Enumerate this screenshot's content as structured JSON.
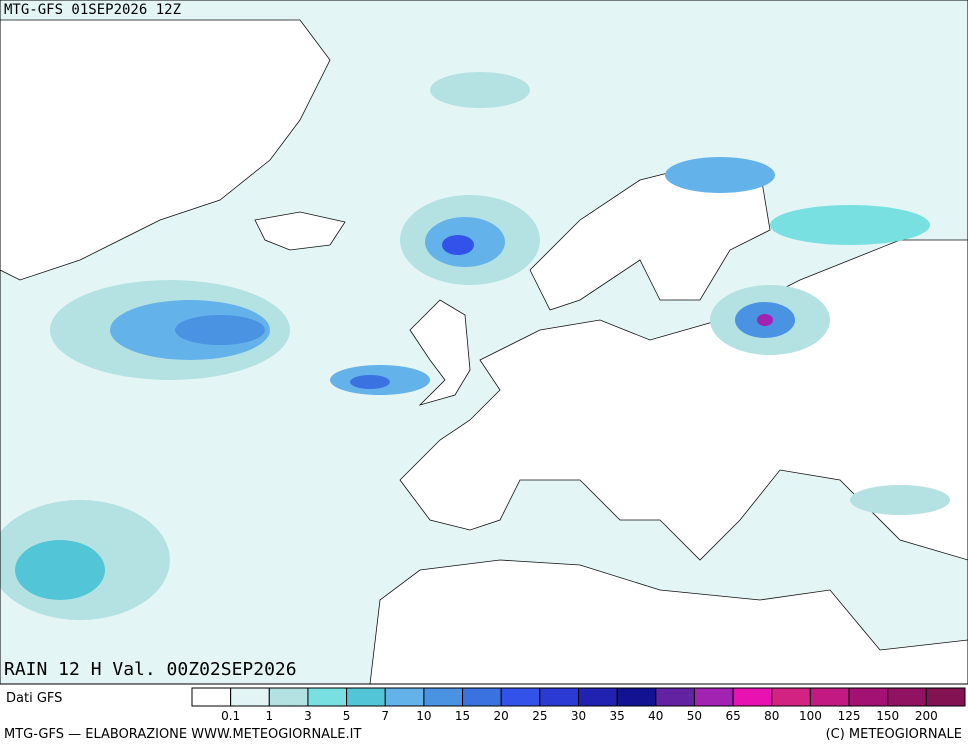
{
  "header": {
    "title": "MTG-GFS 01SEP2026 12Z"
  },
  "map": {
    "label": "RAIN 12 H Val. 00Z02SEP2026"
  },
  "legend": {
    "source": "Dati GFS",
    "levels": [
      0.1,
      1,
      3,
      5,
      7,
      10,
      15,
      20,
      25,
      30,
      35,
      40,
      50,
      65,
      80,
      100,
      125,
      150,
      200
    ],
    "colors": [
      "#ffffff",
      "#e2f4f4",
      "#b4e2e2",
      "#78e0e0",
      "#52c6d6",
      "#64b2ea",
      "#4a92e2",
      "#3a72e2",
      "#3252ea",
      "#2a3ad2",
      "#2222b2",
      "#121292",
      "#6222a2",
      "#a222b2",
      "#e812b2",
      "#d22282",
      "#c21a82",
      "#a21272",
      "#921262",
      "#821252"
    ]
  },
  "footer": {
    "left": "MTG-GFS — ELABORAZIONE WWW.METEOGIORNALE.IT",
    "right": "(C) METEOGIORNALE"
  }
}
